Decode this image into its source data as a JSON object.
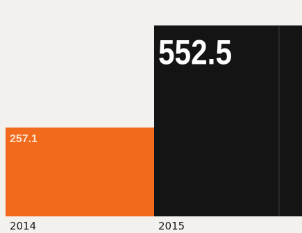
{
  "chart_data": {
    "type": "bar",
    "categories": [
      "2014",
      "2015"
    ],
    "values": [
      257.1,
      552.5
    ],
    "value_labels": [
      "257.1",
      "552.5"
    ],
    "ylim": [
      0,
      618
    ],
    "colors": [
      "#f26a1c",
      "#141414"
    ],
    "label_colors": [
      "#ffe3cf",
      "#ffffff"
    ],
    "title": "",
    "xlabel": "",
    "ylabel": "",
    "grid": false,
    "legend": "none"
  }
}
